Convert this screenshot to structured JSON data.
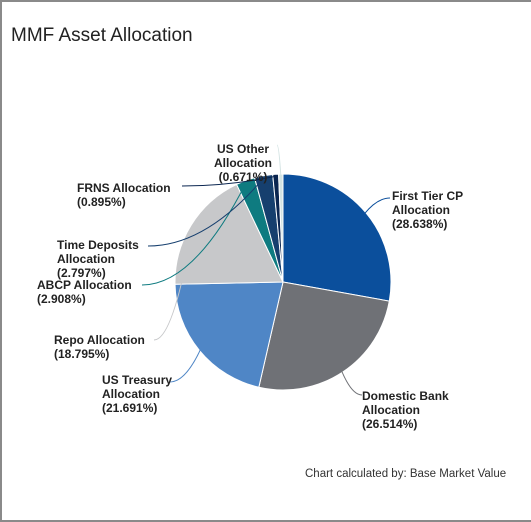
{
  "chart_data": {
    "type": "pie",
    "title": "MMF Asset Allocation",
    "categories": [
      "First Tier CP Allocation",
      "Domestic Bank Allocation",
      "US Treasury Allocation",
      "Repo Allocation",
      "ABCP Allocation",
      "Time Deposits Allocation",
      "FRNS Allocation",
      "US Other Allocation"
    ],
    "values": [
      28.638,
      26.514,
      21.691,
      18.795,
      2.908,
      2.797,
      0.895,
      0.671
    ],
    "value_labels": [
      "(28.638%)",
      "(26.514%)",
      "(21.691%)",
      "(18.795%)",
      "(2.908%)",
      "(2.797%)",
      "(0.895%)",
      "(0.671%)"
    ],
    "colors": [
      "#0b4f9c",
      "#6f7176",
      "#4f86c6",
      "#c7c8ca",
      "#0e7b80",
      "#163f6e",
      "#0a2550",
      "#d3e3e3"
    ],
    "footnote": "Chart calculated by: Base Market Value"
  }
}
